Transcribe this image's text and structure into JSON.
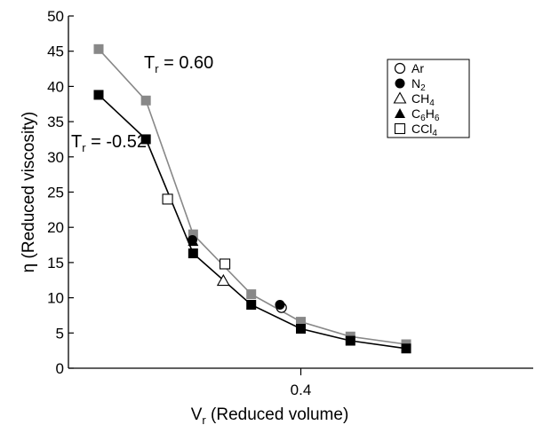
{
  "chart_data": {
    "type": "line",
    "title": "",
    "xlabel": {
      "main": "V",
      "sub": "r",
      "rest": " (Reduced volume)"
    },
    "ylabel": "η (Reduced viscosity)",
    "xlim": [
      0.1,
      0.7
    ],
    "ylim": [
      0,
      50
    ],
    "xticks": [
      {
        "value": 0.4,
        "label": "0.4"
      }
    ],
    "yticks": [
      0,
      5,
      10,
      15,
      20,
      25,
      30,
      35,
      40,
      45,
      50
    ],
    "grid": false,
    "legend_position": "top-right",
    "series": [
      {
        "annotation": {
          "main": "T",
          "sub": "r",
          "rest": " = 0.60"
        },
        "color": "#888888",
        "marker": "square",
        "x": [
          0.139,
          0.2,
          0.261,
          0.336,
          0.4,
          0.464,
          0.536
        ],
        "y": [
          45.3,
          38.0,
          19.0,
          10.5,
          6.6,
          4.5,
          3.4
        ]
      },
      {
        "annotation": {
          "main": "T",
          "sub": "r",
          "rest": " = -0.52"
        },
        "color": "#000000",
        "marker": "square",
        "x": [
          0.139,
          0.2,
          0.261,
          0.336,
          0.4,
          0.464,
          0.536
        ],
        "y": [
          38.8,
          32.5,
          16.3,
          9.0,
          5.6,
          3.9,
          2.8
        ]
      }
    ],
    "experimental_points": [
      {
        "substance": "Ar",
        "marker": "circle-open",
        "x": 0.375,
        "y": 8.6
      },
      {
        "substance": "N2",
        "marker": "circle-filled",
        "x": 0.373,
        "y": 9.0
      },
      {
        "substance": "N2",
        "marker": "circle-filled",
        "x": 0.26,
        "y": 18.2
      },
      {
        "substance": "CH4",
        "marker": "triangle-open",
        "x": 0.3,
        "y": 12.4
      },
      {
        "substance": "C6H6",
        "marker": "triangle-filled",
        "x": 0.261,
        "y": 18.0
      },
      {
        "substance": "CCl4",
        "marker": "square-open",
        "x": 0.228,
        "y": 24.0
      },
      {
        "substance": "CCl4",
        "marker": "square-open",
        "x": 0.302,
        "y": 14.8
      }
    ],
    "legend": [
      {
        "main": "Ar",
        "sub": "",
        "tail": "",
        "sub2": "",
        "marker": "circle-open"
      },
      {
        "main": "N",
        "sub": "2",
        "tail": "",
        "sub2": "",
        "marker": "circle-filled"
      },
      {
        "main": "CH",
        "sub": "4",
        "tail": "",
        "sub2": "",
        "marker": "triangle-open"
      },
      {
        "main": "C",
        "sub": "6",
        "tail": "H",
        "sub2": "6",
        "marker": "triangle-filled"
      },
      {
        "main": "CCl",
        "sub": "4",
        "tail": "",
        "sub2": "",
        "marker": "square-open"
      }
    ]
  }
}
